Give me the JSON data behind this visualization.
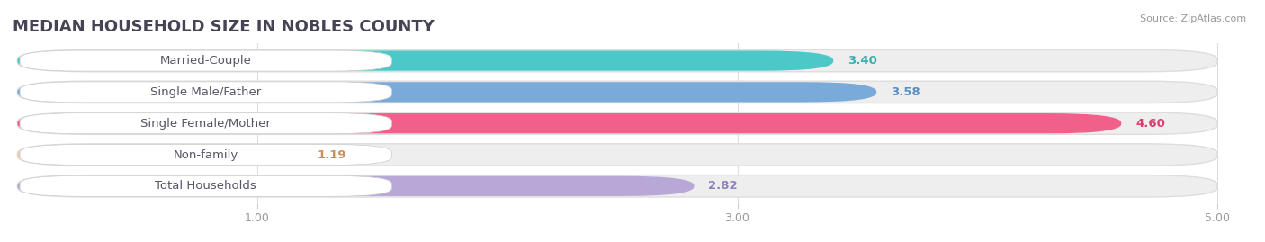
{
  "title": "MEDIAN HOUSEHOLD SIZE IN NOBLES COUNTY",
  "source": "Source: ZipAtlas.com",
  "categories": [
    "Married-Couple",
    "Single Male/Father",
    "Single Female/Mother",
    "Non-family",
    "Total Households"
  ],
  "values": [
    3.4,
    3.58,
    4.6,
    1.19,
    2.82
  ],
  "bar_colors": [
    "#4dc8c8",
    "#7aaad8",
    "#f0608a",
    "#f5c8a0",
    "#b8a8d8"
  ],
  "value_colors": [
    "#3aafaf",
    "#5a8ec0",
    "#d84070",
    "#c89060",
    "#9080bb"
  ],
  "xmin": 0.0,
  "xmax": 5.0,
  "xticks": [
    1.0,
    3.0,
    5.0
  ],
  "xtick_labels": [
    "1.00",
    "3.00",
    "5.00"
  ],
  "background_color": "#ffffff",
  "bar_bg_color": "#eeeeee",
  "title_fontsize": 13,
  "label_fontsize": 9.5,
  "value_fontsize": 9.5,
  "source_fontsize": 8
}
